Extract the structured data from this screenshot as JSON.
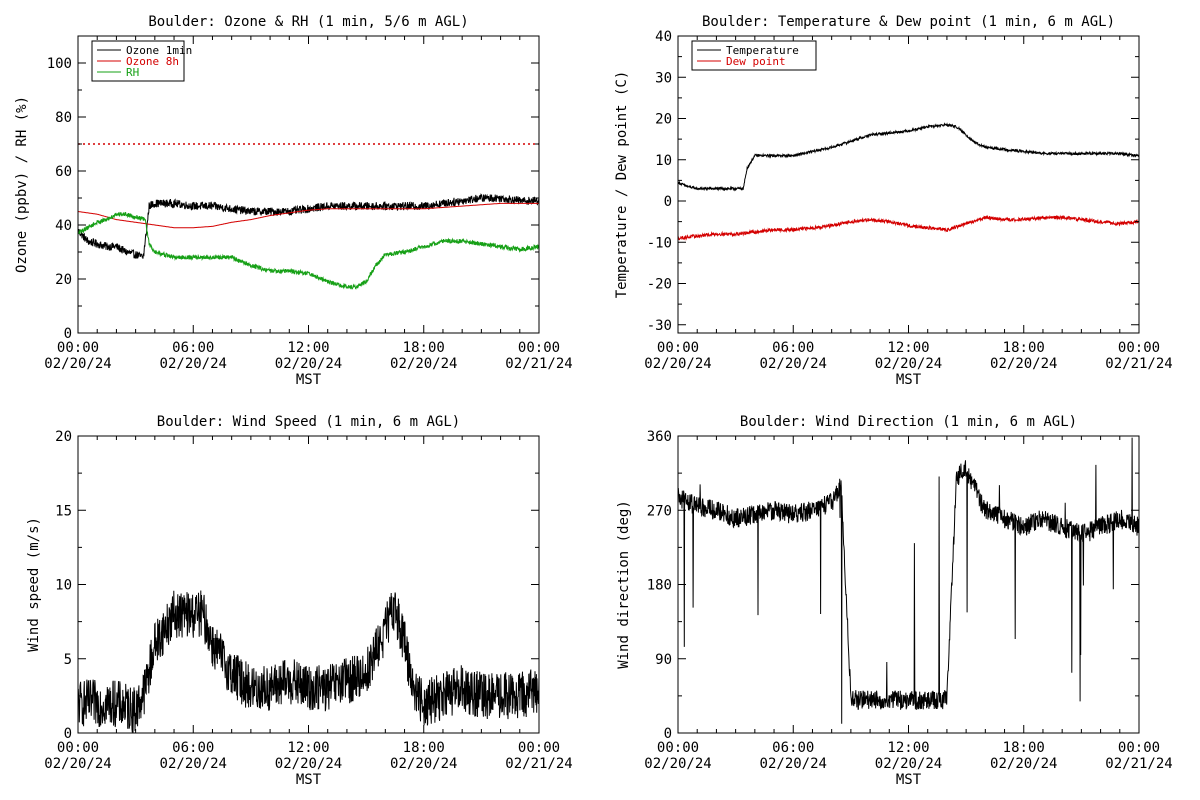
{
  "colors": {
    "black": "#000000",
    "red": "#d40000",
    "green": "#16a016",
    "background": "#ffffff"
  },
  "chart_data": [
    {
      "type": "line",
      "title": "Boulder: Ozone & RH (1 min, 5/6 m AGL)",
      "xlabel": "MST",
      "ylabel": "Ozone (ppbv) / RH (%)",
      "x_range_hours": [
        0,
        24
      ],
      "ylim": [
        0,
        110
      ],
      "x_ticks": [
        {
          "hour": 0,
          "time": "00:00",
          "date": "02/20/24"
        },
        {
          "hour": 6,
          "time": "06:00",
          "date": "02/20/24"
        },
        {
          "hour": 12,
          "time": "12:00",
          "date": "02/20/24"
        },
        {
          "hour": 18,
          "time": "18:00",
          "date": "02/20/24"
        },
        {
          "hour": 24,
          "time": "00:00",
          "date": "02/21/24"
        }
      ],
      "y_ticks": [
        0,
        20,
        40,
        60,
        80,
        100
      ],
      "legend": {
        "position": "top-left",
        "entries": [
          {
            "label": "Ozone 1min",
            "color": "#000000"
          },
          {
            "label": "Ozone 8h",
            "color": "#d40000"
          },
          {
            "label": "RH",
            "color": "#16a016"
          }
        ]
      },
      "reference_lines": [
        {
          "y": 70,
          "color": "#d40000",
          "style": "dotted"
        }
      ],
      "series": [
        {
          "name": "Ozone 1min",
          "color": "#000000",
          "noise": 1.5,
          "x": [
            0,
            0.5,
            1,
            1.5,
            2,
            2.5,
            3,
            3.4,
            3.6,
            3.7,
            4,
            5,
            6,
            7,
            8,
            9,
            10,
            11,
            12,
            13,
            14,
            15,
            16,
            17,
            18,
            19,
            20,
            21,
            22,
            23,
            24
          ],
          "y": [
            38,
            34,
            33,
            32,
            32,
            30,
            29,
            28,
            40,
            47,
            48,
            48,
            47,
            47,
            46,
            45,
            45,
            45,
            46,
            47,
            47,
            47,
            47,
            47,
            47,
            48,
            49,
            50,
            50,
            49,
            49
          ]
        },
        {
          "name": "Ozone 8h",
          "color": "#d40000",
          "noise": 0,
          "x": [
            0,
            1,
            2,
            3,
            4,
            5,
            6,
            7,
            8,
            9,
            10,
            11,
            12,
            13,
            14,
            15,
            16,
            17,
            18,
            19,
            20,
            21,
            22,
            23,
            24
          ],
          "y": [
            45,
            44,
            42,
            41,
            40,
            39,
            39,
            39.5,
            41,
            42,
            43.5,
            44.5,
            45.5,
            46,
            46,
            46,
            46,
            46,
            46,
            46.5,
            47,
            47.5,
            48,
            48,
            48
          ]
        },
        {
          "name": "RH",
          "color": "#16a016",
          "noise": 0.8,
          "x": [
            0,
            0.5,
            1,
            1.5,
            2,
            2.5,
            3,
            3.5,
            3.7,
            4,
            5,
            6,
            7,
            8,
            9,
            10,
            11,
            12,
            13,
            14,
            14.5,
            15,
            15.5,
            16,
            17,
            18,
            19,
            20,
            21,
            22,
            23,
            24
          ],
          "y": [
            37,
            39,
            41,
            42,
            44,
            44,
            43,
            42,
            33,
            30,
            28,
            28,
            28,
            28,
            25,
            23,
            23,
            22,
            19,
            17,
            17,
            19,
            25,
            29,
            30,
            32,
            34,
            34,
            33,
            32,
            31,
            32
          ]
        }
      ]
    },
    {
      "type": "line",
      "title": "Boulder: Temperature & Dew point (1 min, 6 m AGL)",
      "xlabel": "MST",
      "ylabel": "Temperature / Dew point (C)",
      "x_range_hours": [
        0,
        24
      ],
      "ylim": [
        -32,
        40
      ],
      "x_ticks": [
        {
          "hour": 0,
          "time": "00:00",
          "date": "02/20/24"
        },
        {
          "hour": 6,
          "time": "06:00",
          "date": "02/20/24"
        },
        {
          "hour": 12,
          "time": "12:00",
          "date": "02/20/24"
        },
        {
          "hour": 18,
          "time": "18:00",
          "date": "02/20/24"
        },
        {
          "hour": 24,
          "time": "00:00",
          "date": "02/21/24"
        }
      ],
      "y_ticks": [
        -30,
        -20,
        -10,
        0,
        10,
        20,
        30,
        40
      ],
      "legend": {
        "position": "top-left",
        "entries": [
          {
            "label": "Temperature",
            "color": "#000000"
          },
          {
            "label": "Dew point",
            "color": "#d40000"
          }
        ]
      },
      "reference_lines": [],
      "series": [
        {
          "name": "Temperature",
          "color": "#000000",
          "noise": 0.3,
          "x": [
            0,
            0.5,
            1,
            2,
            3,
            3.4,
            3.6,
            4,
            5,
            6,
            7,
            8,
            9,
            10,
            11,
            12,
            13,
            14,
            14.5,
            15,
            15.5,
            16,
            17,
            18,
            19,
            20,
            21,
            22,
            23,
            24
          ],
          "y": [
            4.5,
            3.5,
            3,
            3,
            3,
            3,
            8,
            11,
            11,
            11,
            12,
            13,
            14.5,
            16,
            16.5,
            17,
            18,
            18.5,
            18,
            16,
            14,
            13,
            12.5,
            12,
            11.5,
            11.5,
            11.5,
            11.5,
            11.5,
            11
          ]
        },
        {
          "name": "Dew point",
          "color": "#d40000",
          "noise": 0.4,
          "x": [
            0,
            1,
            2,
            3,
            4,
            5,
            6,
            7,
            8,
            9,
            10,
            11,
            12,
            13,
            14,
            15,
            16,
            17,
            18,
            19,
            20,
            21,
            22,
            23,
            24
          ],
          "y": [
            -9,
            -8.5,
            -8,
            -8,
            -7.5,
            -7,
            -7,
            -6.5,
            -6,
            -5,
            -4.5,
            -5,
            -6,
            -6.5,
            -7,
            -5.5,
            -4,
            -4.5,
            -4.5,
            -4,
            -4,
            -4.5,
            -5,
            -5.5,
            -5
          ]
        }
      ]
    },
    {
      "type": "line",
      "title": "Boulder: Wind Speed (1 min, 6 m AGL)",
      "xlabel": "MST",
      "ylabel": "Wind speed (m/s)",
      "x_range_hours": [
        0,
        24
      ],
      "ylim": [
        0,
        20
      ],
      "x_ticks": [
        {
          "hour": 0,
          "time": "00:00",
          "date": "02/20/24"
        },
        {
          "hour": 6,
          "time": "06:00",
          "date": "02/20/24"
        },
        {
          "hour": 12,
          "time": "12:00",
          "date": "02/20/24"
        },
        {
          "hour": 18,
          "time": "18:00",
          "date": "02/20/24"
        },
        {
          "hour": 24,
          "time": "00:00",
          "date": "02/21/24"
        }
      ],
      "y_ticks": [
        0,
        5,
        10,
        15,
        20
      ],
      "legend": null,
      "reference_lines": [],
      "series": [
        {
          "name": "",
          "color": "#000000",
          "noise": 1.6,
          "x": [
            0,
            1,
            2,
            3,
            3.5,
            4,
            5,
            6,
            6.5,
            7,
            8,
            9,
            10,
            11,
            12,
            13,
            14,
            15,
            16,
            16.5,
            17,
            17.5,
            18,
            19,
            20,
            21,
            22,
            23,
            24
          ],
          "y": [
            2,
            2,
            2,
            1.5,
            3,
            6,
            8,
            8,
            8,
            6,
            4,
            3,
            3,
            3.5,
            3,
            3,
            3.5,
            4,
            7,
            8.5,
            6,
            3,
            2,
            2.5,
            3,
            2.5,
            2.5,
            2.5,
            3
          ]
        }
      ]
    },
    {
      "type": "line",
      "title": "Boulder: Wind Direction (1 min, 6 m AGL)",
      "xlabel": "MST",
      "ylabel": "Wind direction (deg)",
      "x_range_hours": [
        0,
        24
      ],
      "ylim": [
        0,
        360
      ],
      "x_ticks": [
        {
          "hour": 0,
          "time": "00:00",
          "date": "02/20/24"
        },
        {
          "hour": 6,
          "time": "06:00",
          "date": "02/20/24"
        },
        {
          "hour": 12,
          "time": "12:00",
          "date": "02/20/24"
        },
        {
          "hour": 18,
          "time": "18:00",
          "date": "02/20/24"
        },
        {
          "hour": 24,
          "time": "00:00",
          "date": "02/21/24"
        }
      ],
      "y_ticks": [
        0,
        90,
        180,
        270,
        360
      ],
      "legend": null,
      "reference_lines": [],
      "series": [
        {
          "name": "",
          "color": "#000000",
          "noise": 12,
          "x": [
            0,
            1,
            2,
            3,
            4,
            5,
            6,
            7,
            8,
            8.5,
            9,
            10,
            11,
            12,
            13,
            14,
            14.5,
            15,
            16,
            17,
            18,
            19,
            20,
            21,
            22,
            23,
            24
          ],
          "y": [
            285,
            275,
            270,
            260,
            265,
            270,
            265,
            270,
            280,
            300,
            40,
            40,
            40,
            40,
            40,
            40,
            310,
            320,
            270,
            260,
            250,
            260,
            250,
            240,
            250,
            260,
            250
          ]
        }
      ]
    }
  ]
}
